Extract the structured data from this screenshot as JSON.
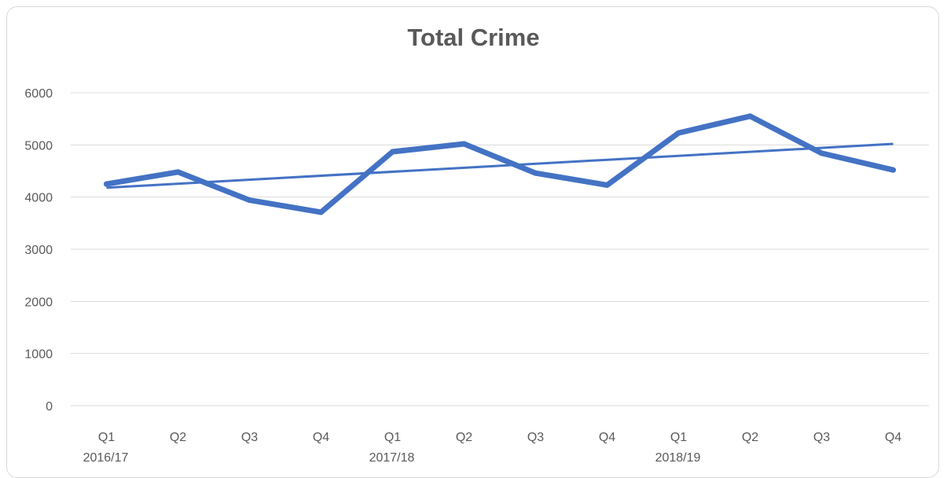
{
  "chart_data": {
    "type": "line",
    "title": "Total Crime",
    "categories": [
      "Q1",
      "Q2",
      "Q3",
      "Q4",
      "Q1",
      "Q2",
      "Q3",
      "Q4",
      "Q1",
      "Q2",
      "Q3",
      "Q4"
    ],
    "year_groups": [
      {
        "label": "2016/17",
        "start_index": 0
      },
      {
        "label": "2017/18",
        "start_index": 4
      },
      {
        "label": "2018/19",
        "start_index": 8
      }
    ],
    "series": [
      {
        "values": [
          4250,
          4480,
          3940,
          3710,
          4870,
          5020,
          4460,
          4230,
          5230,
          5550,
          4840,
          4520
        ]
      }
    ],
    "trendline": {
      "start": 4180,
      "end": 5020
    },
    "ylim": [
      0,
      6000
    ],
    "yticks": [
      0,
      1000,
      2000,
      3000,
      4000,
      5000,
      6000
    ],
    "grid": true,
    "legend": "none",
    "colors": {
      "line": "#4472c4",
      "grid": "#d9d9d9",
      "text": "#595959"
    }
  }
}
